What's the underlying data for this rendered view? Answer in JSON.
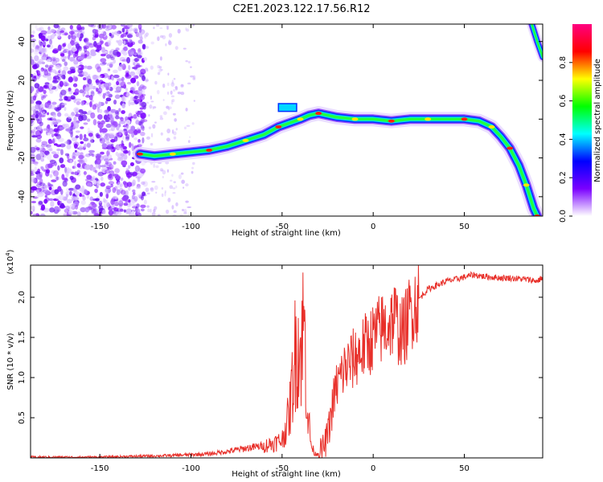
{
  "title": "C2E1.2023.122.17.56.R12",
  "chart_data": [
    {
      "type": "heatmap",
      "xlabel": "Height of straight line (km)",
      "ylabel": "Frequency (Hz)",
      "xlim": [
        -188,
        93
      ],
      "ylim": [
        -50,
        49
      ],
      "xticks": [
        -150,
        -100,
        -50,
        0,
        50
      ],
      "yticks": [
        -40,
        -20,
        0,
        20,
        40
      ],
      "colorbar": {
        "label": "Normalized spectral amplitude",
        "range": [
          0,
          1
        ],
        "ticks": [
          "0.0",
          "0.2",
          "0.4",
          "0.6",
          "0.8"
        ],
        "colors": [
          "#ffffff",
          "#7a00ff",
          "#0000ff",
          "#00ffff",
          "#00ff00",
          "#ffff00",
          "#ff0000",
          "#ff0080"
        ]
      },
      "ridge": [
        {
          "x": -128,
          "y": -18
        },
        {
          "x": -120,
          "y": -19
        },
        {
          "x": -110,
          "y": -18
        },
        {
          "x": -100,
          "y": -17
        },
        {
          "x": -90,
          "y": -16
        },
        {
          "x": -80,
          "y": -14
        },
        {
          "x": -70,
          "y": -11
        },
        {
          "x": -60,
          "y": -8
        },
        {
          "x": -52,
          "y": -4
        },
        {
          "x": -46,
          "y": -2
        },
        {
          "x": -40,
          "y": 0
        },
        {
          "x": -35,
          "y": 2
        },
        {
          "x": -30,
          "y": 3
        },
        {
          "x": -20,
          "y": 1
        },
        {
          "x": -10,
          "y": 0
        },
        {
          "x": 0,
          "y": 0
        },
        {
          "x": 10,
          "y": -1
        },
        {
          "x": 20,
          "y": 0
        },
        {
          "x": 30,
          "y": 0
        },
        {
          "x": 40,
          "y": 0
        },
        {
          "x": 50,
          "y": 0
        },
        {
          "x": 58,
          "y": -1
        },
        {
          "x": 65,
          "y": -4
        },
        {
          "x": 70,
          "y": -9
        },
        {
          "x": 75,
          "y": -15
        },
        {
          "x": 80,
          "y": -24
        },
        {
          "x": 84,
          "y": -34
        },
        {
          "x": 88,
          "y": -46
        },
        {
          "x": 90,
          "y": -50
        }
      ],
      "ridge_upper_branch": [
        {
          "x": 87,
          "y": 49
        },
        {
          "x": 90,
          "y": 40
        },
        {
          "x": 93,
          "y": 32
        }
      ],
      "noise_region_x": [
        -188,
        -125
      ],
      "lightly_scattered_region_x": [
        -125,
        -98
      ]
    },
    {
      "type": "line",
      "xlabel": "Height of straight line (km)",
      "ylabel": "SNR (10 * v/v)",
      "y_multiplier_label": "(x10",
      "y_multiplier_exponent": "4",
      "y_multiplier_close": ")",
      "xlim": [
        -188,
        93
      ],
      "ylim": [
        0,
        2.4
      ],
      "xticks": [
        -150,
        -100,
        -50,
        0,
        50
      ],
      "yticks": [
        "0.5",
        "1.0",
        "1.5",
        "2.0"
      ],
      "ytick_values": [
        0.5,
        1.0,
        1.5,
        2.0
      ],
      "line_color": "#e8302a",
      "series": [
        {
          "x": [
            -188,
            -170,
            -150,
            -130,
            -110,
            -100,
            -90,
            -80,
            -70,
            -60,
            -55,
            -50,
            -46,
            -44,
            -42,
            -40,
            -38,
            -36,
            -34,
            -32,
            -30,
            -28,
            -26,
            -24,
            -22,
            -20,
            -18,
            -16,
            -14,
            -12,
            -10,
            -8,
            -6,
            -4,
            -2,
            0,
            2,
            4,
            6,
            8,
            10,
            12,
            14,
            16,
            18,
            20,
            22,
            24,
            26,
            28,
            30,
            35,
            40,
            45,
            50,
            55,
            60,
            65,
            70,
            75,
            80,
            85,
            90,
            93
          ],
          "values": [
            0.01,
            0.01,
            0.01,
            0.02,
            0.03,
            0.04,
            0.05,
            0.08,
            0.12,
            0.15,
            0.18,
            0.22,
            0.55,
            1.0,
            1.5,
            1.3,
            1.7,
            0.6,
            0.15,
            0.05,
            0.06,
            0.1,
            0.2,
            0.4,
            0.7,
            0.9,
            1.0,
            1.1,
            1.15,
            1.2,
            1.25,
            1.3,
            1.35,
            1.4,
            1.45,
            1.5,
            1.55,
            1.6,
            1.62,
            1.65,
            1.7,
            1.75,
            1.6,
            1.55,
            1.65,
            1.8,
            1.9,
            1.95,
            2.0,
            2.05,
            2.1,
            2.15,
            2.2,
            2.22,
            2.25,
            2.28,
            2.26,
            2.25,
            2.24,
            2.24,
            2.23,
            2.22,
            2.2,
            2.25
          ]
        }
      ]
    }
  ]
}
